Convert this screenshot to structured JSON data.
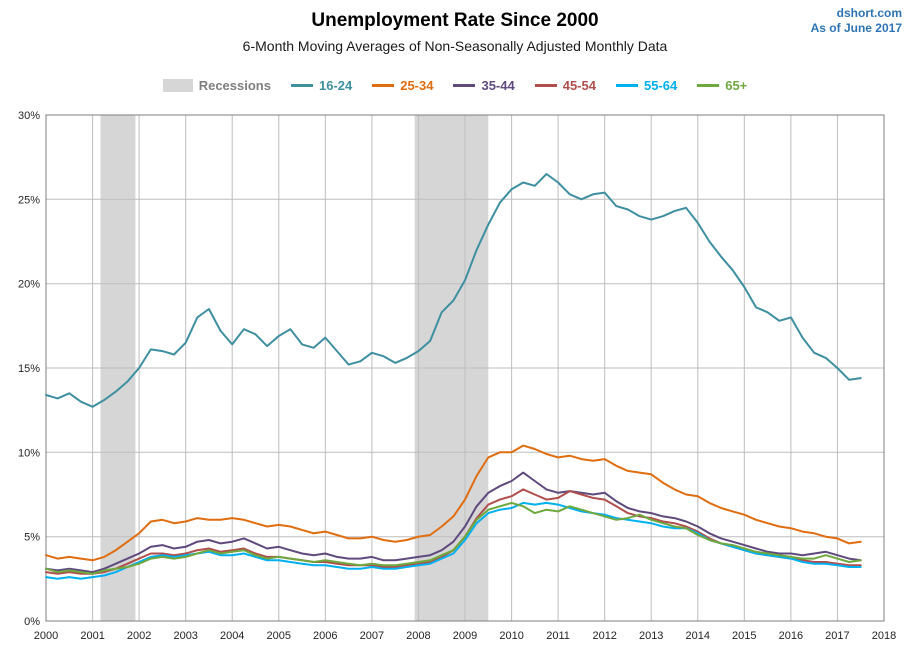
{
  "header": {
    "title": "Unemployment Rate Since 2000",
    "subtitle": "6-Month Moving Averages of Non-Seasonally Adjusted Monthly Data",
    "source": "dshort.com",
    "as_of": "As of June 2017",
    "watermark_color": "#2E74B5"
  },
  "chart_data": {
    "type": "line",
    "title": "Unemployment Rate Since 2000",
    "subtitle": "6-Month Moving Averages of Non-Seasonally Adjusted Monthly Data",
    "legend_position": "top",
    "grid": true,
    "grid_color": "#BDBDBD",
    "border_color": "#7F7F7F",
    "x_start": 2000,
    "x_step": 0.25,
    "x_axis": {
      "min": 2000,
      "max": 2018,
      "tick_step": 1
    },
    "y_axis": {
      "min": 0,
      "max": 30,
      "tick_step": 5,
      "tick_format": "percent"
    },
    "recessions": {
      "label": "Recessions",
      "color": "#D6D6D6",
      "label_color": "#7F7F7F",
      "bands": [
        [
          2001.17,
          2001.92
        ],
        [
          2007.92,
          2009.5
        ]
      ]
    },
    "series": [
      {
        "name": "16-24",
        "color": "#3E8FA0",
        "values": [
          13.4,
          13.2,
          13.5,
          13.0,
          12.7,
          13.1,
          13.6,
          14.2,
          15.0,
          16.1,
          16.0,
          15.8,
          16.5,
          18.0,
          18.5,
          17.2,
          16.4,
          17.3,
          17.0,
          16.3,
          16.9,
          17.3,
          16.4,
          16.2,
          16.8,
          16.0,
          15.2,
          15.4,
          15.9,
          15.7,
          15.3,
          15.6,
          16.0,
          16.6,
          18.3,
          19.0,
          20.2,
          22.0,
          23.5,
          24.8,
          25.6,
          26.0,
          25.8,
          26.5,
          26.0,
          25.3,
          25.0,
          25.3,
          25.4,
          24.6,
          24.4,
          24.0,
          23.8,
          24.0,
          24.3,
          24.5,
          23.6,
          22.5,
          21.6,
          20.8,
          19.8,
          18.6,
          18.3,
          17.8,
          18.0,
          16.8,
          15.9,
          15.6,
          15.0,
          14.3,
          14.4
        ]
      },
      {
        "name": "25-34",
        "color": "#E06D10",
        "values": [
          3.9,
          3.7,
          3.8,
          3.7,
          3.6,
          3.8,
          4.2,
          4.7,
          5.2,
          5.9,
          6.0,
          5.8,
          5.9,
          6.1,
          6.0,
          6.0,
          6.1,
          6.0,
          5.8,
          5.6,
          5.7,
          5.6,
          5.4,
          5.2,
          5.3,
          5.1,
          4.9,
          4.9,
          5.0,
          4.8,
          4.7,
          4.8,
          5.0,
          5.1,
          5.6,
          6.2,
          7.2,
          8.6,
          9.7,
          10.0,
          10.0,
          10.4,
          10.2,
          9.9,
          9.7,
          9.8,
          9.6,
          9.5,
          9.6,
          9.2,
          8.9,
          8.8,
          8.7,
          8.2,
          7.8,
          7.5,
          7.4,
          7.0,
          6.7,
          6.5,
          6.3,
          6.0,
          5.8,
          5.6,
          5.5,
          5.3,
          5.2,
          5.0,
          4.9,
          4.6,
          4.7
        ]
      },
      {
        "name": "35-44",
        "color": "#5F4A7D",
        "values": [
          3.1,
          3.0,
          3.1,
          3.0,
          2.9,
          3.1,
          3.4,
          3.7,
          4.0,
          4.4,
          4.5,
          4.3,
          4.4,
          4.7,
          4.8,
          4.6,
          4.7,
          4.9,
          4.6,
          4.3,
          4.4,
          4.2,
          4.0,
          3.9,
          4.0,
          3.8,
          3.7,
          3.7,
          3.8,
          3.6,
          3.6,
          3.7,
          3.8,
          3.9,
          4.2,
          4.7,
          5.6,
          6.8,
          7.6,
          8.0,
          8.3,
          8.8,
          8.3,
          7.8,
          7.6,
          7.7,
          7.6,
          7.5,
          7.6,
          7.1,
          6.7,
          6.5,
          6.4,
          6.2,
          6.1,
          5.9,
          5.6,
          5.2,
          4.9,
          4.7,
          4.5,
          4.3,
          4.1,
          4.0,
          4.0,
          3.9,
          4.0,
          4.1,
          3.9,
          3.7,
          3.6
        ]
      },
      {
        "name": "45-54",
        "color": "#B04F4D",
        "values": [
          2.9,
          2.8,
          2.9,
          2.8,
          2.8,
          2.9,
          3.1,
          3.4,
          3.7,
          4.0,
          4.0,
          3.9,
          4.0,
          4.2,
          4.3,
          4.1,
          4.2,
          4.3,
          4.0,
          3.8,
          3.8,
          3.7,
          3.6,
          3.5,
          3.5,
          3.4,
          3.3,
          3.3,
          3.3,
          3.2,
          3.2,
          3.3,
          3.4,
          3.5,
          3.8,
          4.2,
          5.0,
          6.1,
          6.9,
          7.2,
          7.4,
          7.8,
          7.5,
          7.2,
          7.3,
          7.7,
          7.5,
          7.3,
          7.2,
          6.8,
          6.4,
          6.2,
          6.1,
          5.9,
          5.8,
          5.6,
          5.3,
          4.9,
          4.6,
          4.4,
          4.2,
          4.0,
          3.9,
          3.8,
          3.7,
          3.6,
          3.5,
          3.5,
          3.4,
          3.3,
          3.3
        ]
      },
      {
        "name": "55-64",
        "color": "#00B0F0",
        "values": [
          2.6,
          2.5,
          2.6,
          2.5,
          2.6,
          2.7,
          2.9,
          3.2,
          3.5,
          3.8,
          3.9,
          3.8,
          3.9,
          4.0,
          4.1,
          3.9,
          3.9,
          4.0,
          3.8,
          3.6,
          3.6,
          3.5,
          3.4,
          3.3,
          3.3,
          3.2,
          3.1,
          3.1,
          3.2,
          3.1,
          3.1,
          3.2,
          3.3,
          3.4,
          3.7,
          4.0,
          4.8,
          5.8,
          6.4,
          6.6,
          6.7,
          7.0,
          6.9,
          7.0,
          6.9,
          6.7,
          6.5,
          6.4,
          6.3,
          6.1,
          6.0,
          5.9,
          5.8,
          5.6,
          5.5,
          5.5,
          5.2,
          4.8,
          4.6,
          4.4,
          4.2,
          4.0,
          3.9,
          3.8,
          3.7,
          3.5,
          3.4,
          3.4,
          3.3,
          3.2,
          3.2
        ]
      },
      {
        "name": "65+",
        "color": "#6FA83F",
        "values": [
          3.1,
          2.9,
          3.0,
          2.9,
          2.8,
          3.0,
          3.1,
          3.2,
          3.4,
          3.7,
          3.8,
          3.7,
          3.8,
          4.0,
          4.2,
          4.0,
          4.1,
          4.2,
          3.9,
          3.7,
          3.8,
          3.7,
          3.6,
          3.5,
          3.6,
          3.5,
          3.4,
          3.3,
          3.4,
          3.3,
          3.3,
          3.4,
          3.5,
          3.6,
          3.9,
          4.2,
          5.0,
          6.0,
          6.6,
          6.8,
          7.0,
          6.8,
          6.4,
          6.6,
          6.5,
          6.8,
          6.6,
          6.4,
          6.2,
          6.0,
          6.1,
          6.3,
          6.0,
          5.8,
          5.6,
          5.5,
          5.1,
          4.8,
          4.6,
          4.5,
          4.3,
          4.1,
          4.0,
          3.9,
          3.8,
          3.7,
          3.7,
          3.9,
          3.7,
          3.5,
          3.6
        ]
      }
    ]
  }
}
